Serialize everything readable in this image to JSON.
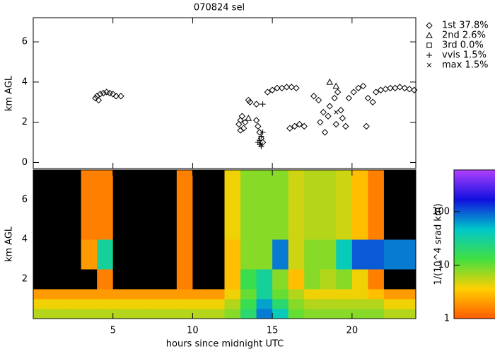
{
  "chart_data": [
    {
      "type": "scatter",
      "title": "070824 sel",
      "ylabel": "km AGL",
      "xlim": [
        0,
        24
      ],
      "xticks": [
        5,
        10,
        15,
        20
      ],
      "ylim": [
        -0.3,
        7.2
      ],
      "yticks": [
        0,
        2,
        4,
        6
      ],
      "series": [
        {
          "name": "1st 37.8%",
          "marker": "diamond",
          "color": "#000000",
          "x": [
            3.9,
            4.0,
            4.2,
            4.4,
            4.6,
            4.8,
            5.0,
            5.2,
            5.5,
            4.1,
            12.9,
            13.0,
            13.1,
            13.2,
            13.3,
            13.0,
            13.5,
            13.6,
            14.0,
            14.1,
            14.2,
            14.3,
            14.4,
            14.0,
            14.7,
            15.0,
            15.3,
            15.6,
            15.9,
            16.2,
            16.5,
            16.1,
            16.4,
            16.7,
            17.0,
            17.6,
            17.9,
            18.2,
            18.5,
            18.0,
            18.3,
            18.6,
            18.9,
            19.1,
            19.3,
            19.0,
            19.4,
            19.6,
            19.8,
            20.1,
            20.4,
            20.7,
            21.0,
            21.3,
            20.9,
            21.5,
            21.8,
            22.1,
            22.4,
            22.7,
            23.0,
            23.3,
            23.6,
            23.9
          ],
          "values": [
            3.2,
            3.3,
            3.4,
            3.45,
            3.5,
            3.45,
            3.4,
            3.3,
            3.3,
            3.1,
            1.9,
            2.1,
            2.3,
            1.7,
            2.0,
            1.6,
            3.1,
            3.0,
            2.1,
            1.8,
            1.5,
            1.2,
            1.0,
            2.9,
            3.5,
            3.6,
            3.7,
            3.7,
            3.75,
            3.75,
            3.7,
            1.7,
            1.8,
            1.9,
            1.8,
            3.3,
            3.1,
            2.5,
            2.3,
            2.0,
            1.5,
            2.8,
            3.2,
            3.5,
            2.6,
            1.9,
            2.2,
            1.8,
            3.2,
            3.5,
            3.7,
            3.8,
            3.2,
            3.0,
            1.8,
            3.5,
            3.6,
            3.65,
            3.7,
            3.7,
            3.75,
            3.7,
            3.65,
            3.6
          ]
        },
        {
          "name": "2nd  2.6%",
          "marker": "triangle",
          "color": "#000000",
          "x": [
            18.6,
            19.0,
            13.5
          ],
          "values": [
            4.0,
            3.8,
            2.2
          ]
        },
        {
          "name": "3rd  0.0%",
          "marker": "square",
          "color": "#000000",
          "x": [],
          "values": []
        },
        {
          "name": "vvis  1.5%",
          "marker": "plus",
          "color": "#000000",
          "x": [
            14.2,
            14.3,
            14.3,
            14.2,
            14.4,
            14.1,
            14.4
          ],
          "values": [
            0.9,
            0.8,
            1.3,
            1.1,
            1.5,
            1.0,
            2.9
          ]
        },
        {
          "name": "max  1.5%",
          "marker": "cross",
          "color": "#000000",
          "x": [
            14.3,
            19.0
          ],
          "values": [
            0.9,
            2.5
          ]
        }
      ]
    },
    {
      "type": "heatmap",
      "xlabel": "hours since midnight UTC",
      "ylabel": "km AGL",
      "xlim": [
        0,
        24
      ],
      "xticks": [
        5,
        10,
        15,
        20
      ],
      "ylim": [
        0,
        7.5
      ],
      "yticks": [
        2,
        4,
        6
      ],
      "xbins": [
        0,
        1,
        2,
        3,
        4,
        5,
        6,
        7,
        8,
        9,
        10,
        11,
        12,
        13,
        14,
        15,
        16,
        17,
        18,
        19,
        20,
        21,
        22,
        23,
        24
      ],
      "ybins": [
        0,
        0.5,
        1,
        1.5,
        2.5,
        4,
        7.5
      ],
      "values": [
        [
          6,
          6,
          6,
          6,
          6,
          6,
          6,
          6,
          6,
          6,
          6,
          6,
          8,
          20,
          80,
          40,
          10,
          8,
          8,
          8,
          8,
          8,
          6,
          6
        ],
        [
          4,
          4,
          4,
          4,
          4,
          4,
          4,
          4,
          4,
          4,
          4,
          4,
          6,
          15,
          60,
          20,
          8,
          6,
          6,
          6,
          6,
          6,
          4,
          4
        ],
        [
          2,
          2,
          2,
          2,
          2,
          2,
          2,
          2,
          2,
          2,
          2,
          2,
          4,
          10,
          30,
          10,
          6,
          4,
          4,
          4,
          4,
          3,
          2,
          2
        ],
        [
          0.5,
          0.5,
          0.5,
          0.5,
          1.5,
          0.5,
          0.5,
          0.5,
          0.5,
          1.5,
          0.5,
          0.5,
          3,
          15,
          30,
          8,
          3,
          8,
          6,
          8,
          4,
          1.5,
          0.5,
          0.5
        ],
        [
          0.5,
          0.5,
          0.5,
          2,
          30,
          0.5,
          0.5,
          0.5,
          0.5,
          1.5,
          0.5,
          0.5,
          3,
          8,
          8,
          80,
          5,
          8,
          8,
          40,
          100,
          100,
          80,
          80
        ],
        [
          0.5,
          0.5,
          0.5,
          1.5,
          1.5,
          0.5,
          0.5,
          0.5,
          0.5,
          1.5,
          0.5,
          0.5,
          4,
          8,
          8,
          8,
          5,
          6,
          6,
          5,
          3,
          1.5,
          0.5,
          0.5
        ]
      ],
      "colormap": [
        "#ff5a00",
        "#ffd000",
        "#40e040",
        "#00c8c8",
        "#1010e0",
        "#b040ff"
      ],
      "under_color": "#000000",
      "colorbar": {
        "label": "1/(10^4 srad km)",
        "scale": "log",
        "lim": [
          1,
          600
        ],
        "ticks": [
          1,
          10,
          100
        ]
      }
    }
  ]
}
